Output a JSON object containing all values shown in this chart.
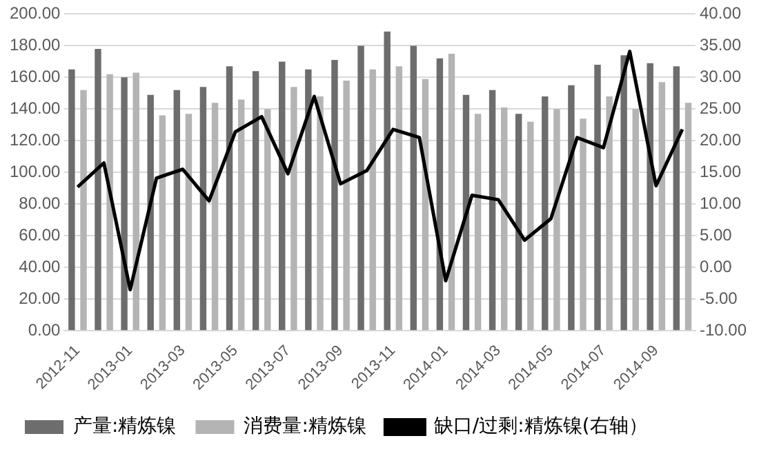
{
  "chart_data": {
    "type": "bar",
    "categories": [
      "2012-11",
      null,
      "2013-01",
      null,
      "2013-03",
      null,
      "2013-05",
      null,
      "2013-07",
      null,
      "2013-09",
      null,
      "2013-11",
      null,
      "2014-01",
      null,
      "2014-03",
      null,
      "2014-05",
      null,
      "2014-07",
      null,
      "2014-09",
      null
    ],
    "series": [
      {
        "name": "产量:精炼镍",
        "color": "#6d6d6d",
        "values": [
          165,
          178,
          160,
          149,
          152,
          154,
          167,
          164,
          170,
          165,
          171,
          180,
          189,
          180,
          172,
          149,
          152,
          137,
          148,
          155,
          168,
          174,
          169,
          167
        ]
      },
      {
        "name": "消费量:精炼镍",
        "color": "#b4b4b4",
        "values": [
          152,
          162,
          163,
          136,
          137,
          144,
          146,
          140,
          154,
          148,
          158,
          165,
          167,
          159,
          175,
          137,
          141,
          132,
          140,
          134,
          148,
          140,
          157,
          144
        ]
      },
      {
        "name": "缺口/过剩:精炼镍(右轴）",
        "type": "line",
        "axis": "y2",
        "color": "#000000",
        "values": [
          12.7,
          16.5,
          -3.5,
          14.1,
          15.5,
          10.5,
          21.4,
          23.8,
          14.8,
          27.0,
          13.2,
          15.3,
          21.8,
          20.5,
          -2.1,
          11.4,
          10.7,
          4.3,
          7.7,
          20.5,
          18.9,
          34.1,
          12.9,
          21.8
        ]
      }
    ],
    "ylim": [
      0,
      200
    ],
    "yticks": [
      {
        "value": 0,
        "label": "0.00"
      },
      {
        "value": 20,
        "label": "20.00"
      },
      {
        "value": 40,
        "label": "40.00"
      },
      {
        "value": 60,
        "label": "60.00"
      },
      {
        "value": 80,
        "label": "80.00"
      },
      {
        "value": 100,
        "label": "100.00"
      },
      {
        "value": 120,
        "label": "120.00"
      },
      {
        "value": 140,
        "label": "140.00"
      },
      {
        "value": 160,
        "label": "160.00"
      },
      {
        "value": 180,
        "label": "180.00"
      },
      {
        "value": 200,
        "label": "200.00"
      }
    ],
    "y2lim": [
      -10,
      40
    ],
    "y2ticks": [
      {
        "value": -10,
        "label": "-10.00"
      },
      {
        "value": -5,
        "label": "-5.00"
      },
      {
        "value": 0,
        "label": "0.00"
      },
      {
        "value": 5,
        "label": "5.00"
      },
      {
        "value": 10,
        "label": "10.00"
      },
      {
        "value": 15,
        "label": "15.00"
      },
      {
        "value": 20,
        "label": "20.00"
      },
      {
        "value": 25,
        "label": "25.00"
      },
      {
        "value": 30,
        "label": "30.00"
      },
      {
        "value": 35,
        "label": "35.00"
      },
      {
        "value": 40,
        "label": "40.00"
      }
    ],
    "grid": "y",
    "legend": "bottom",
    "marker": "none",
    "line_style": "solid"
  }
}
